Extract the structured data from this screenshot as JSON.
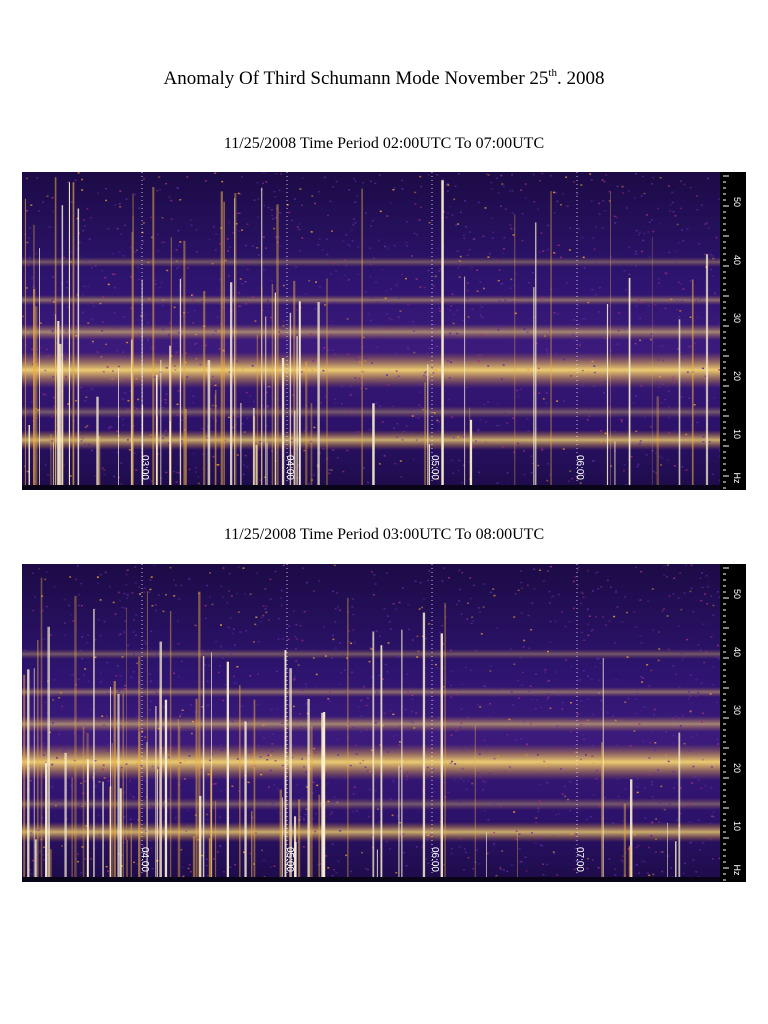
{
  "document": {
    "title_main": "Anomaly Of Third Schumann Mode November 25",
    "title_sup": "th",
    "title_end": ". 2008"
  },
  "panels": [
    {
      "title": "11/25/2008 Time Period 02:00UTC To 07:00UTC",
      "time_labels": [
        "03:00",
        "04:00",
        "05:00",
        "06:00"
      ],
      "freq_labels": [
        "50",
        "40",
        "30",
        "20",
        "10"
      ],
      "freq_unit": "Hz"
    },
    {
      "title": "11/25/2008 Time Period 03:00UTC To 08:00UTC",
      "time_labels": [
        "04:00",
        "05:00",
        "06:00",
        "07:00"
      ],
      "freq_labels": [
        "50",
        "40",
        "30",
        "20",
        "10"
      ],
      "freq_unit": "Hz"
    }
  ],
  "colors": {
    "background_deep": "#1a0a3a",
    "background_mid": "#3a1878",
    "band_warm": "#e0902a",
    "band_hot": "#ffe070",
    "spike": "#fff4d0"
  }
}
